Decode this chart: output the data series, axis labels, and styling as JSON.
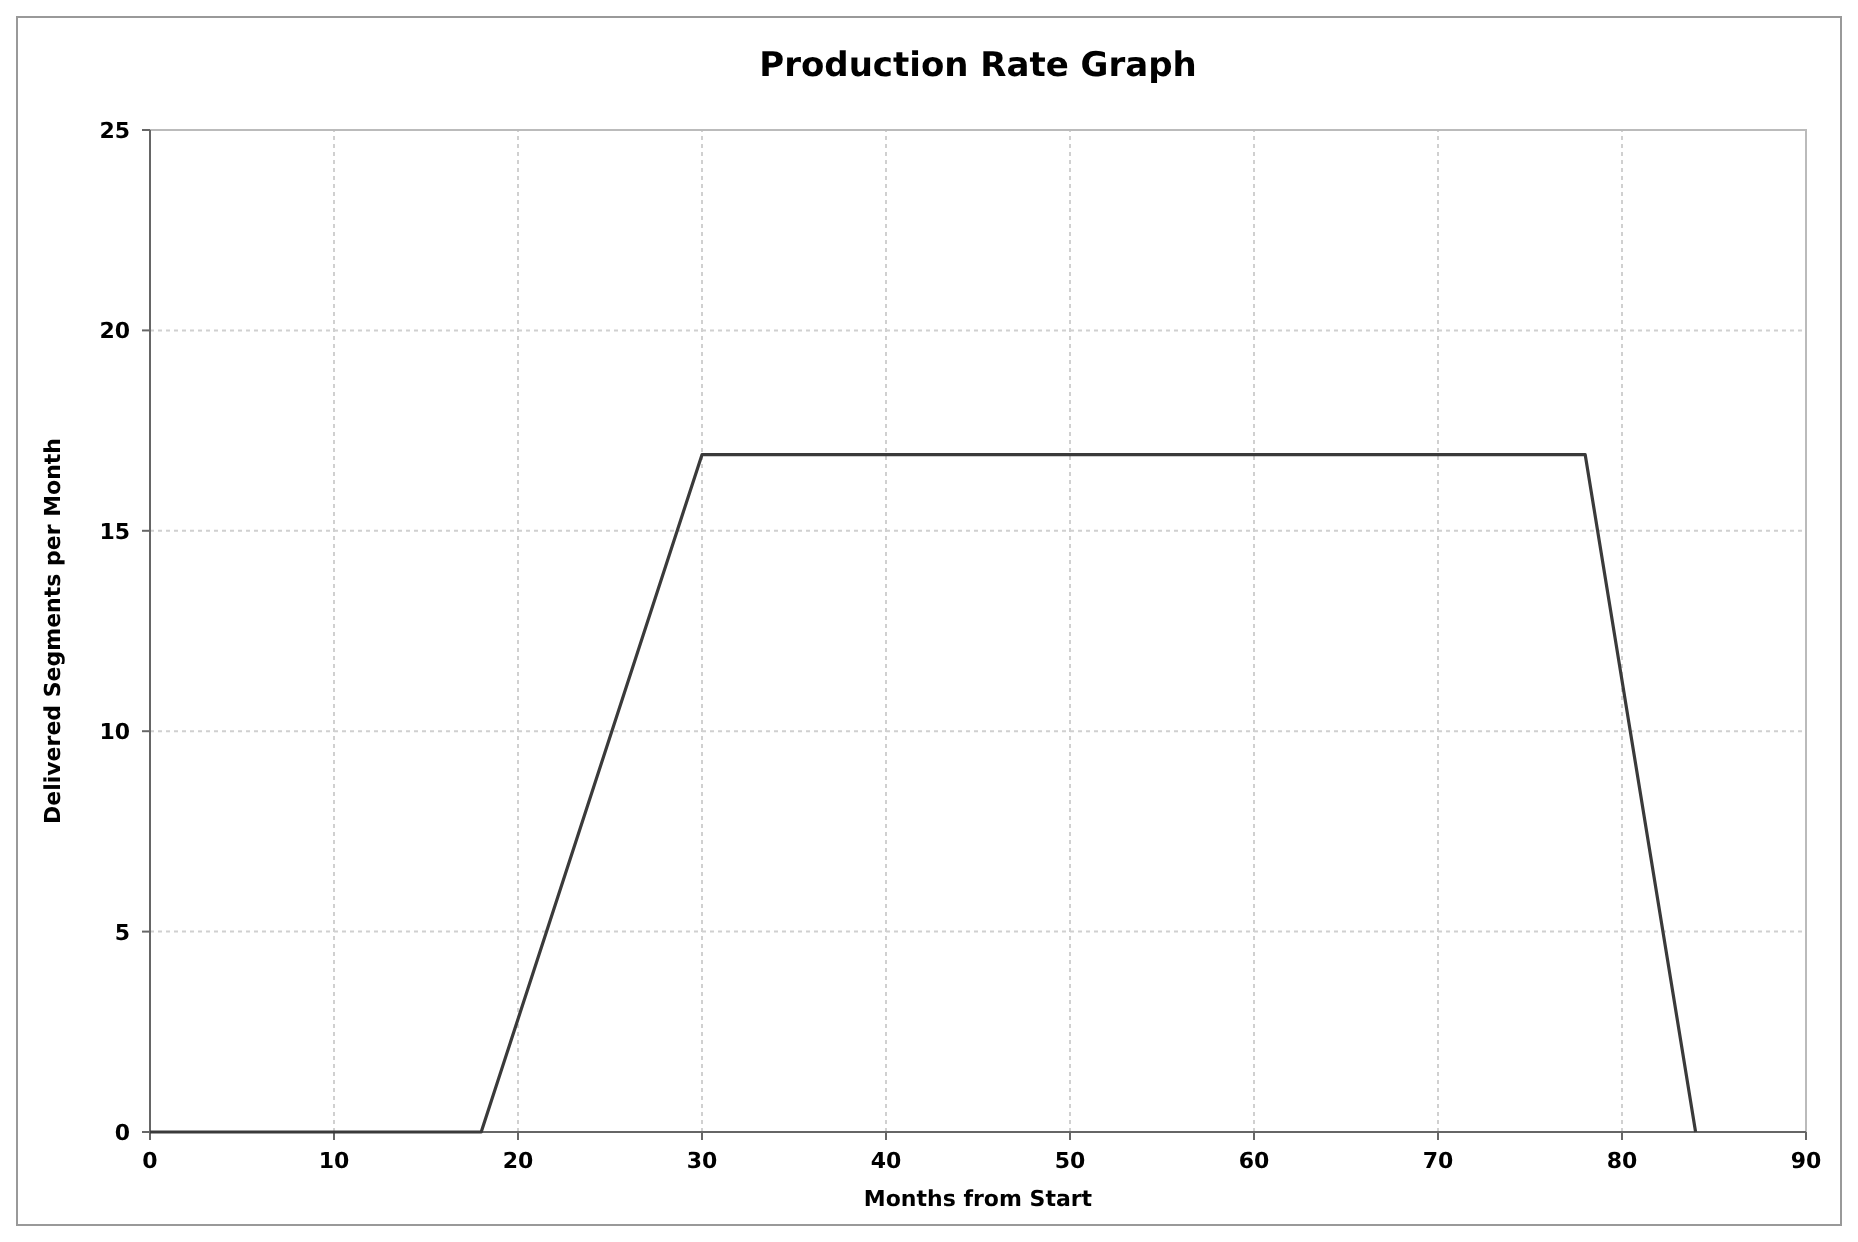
{
  "chart_data": {
    "type": "line",
    "title": "Production Rate Graph",
    "xlabel": "Months from Start",
    "ylabel": "Delivered Segments per Month",
    "x": [
      0,
      18,
      30,
      78,
      84
    ],
    "series": [
      {
        "color": "#3a3a3a",
        "values": [
          0,
          0,
          16.9,
          16.9,
          0
        ]
      }
    ],
    "xlim": [
      0,
      90
    ],
    "xticks": [
      0,
      10,
      20,
      30,
      40,
      50,
      60,
      70,
      80,
      90
    ],
    "ylim": [
      0,
      25
    ],
    "yticks": [
      0,
      5,
      10,
      15,
      20,
      25
    ],
    "grid": true,
    "marker": "none",
    "line_style": "solid"
  }
}
